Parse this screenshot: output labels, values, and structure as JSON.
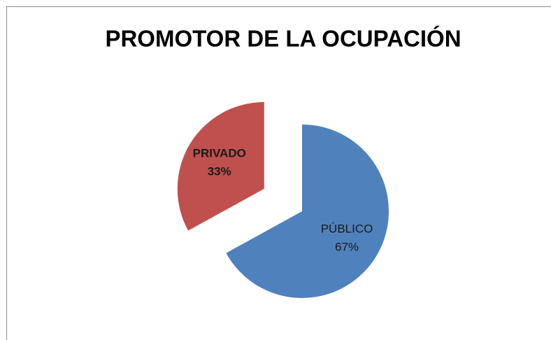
{
  "chart_data": {
    "type": "pie",
    "title": "PROMOTOR DE LA OCUPACIÓN",
    "categories": [
      "PÚBLICO",
      "PRIVADO"
    ],
    "values": [
      67,
      33
    ],
    "value_labels": [
      "67%",
      "33%"
    ],
    "colors": [
      "#4f81bd",
      "#c0504d"
    ]
  }
}
